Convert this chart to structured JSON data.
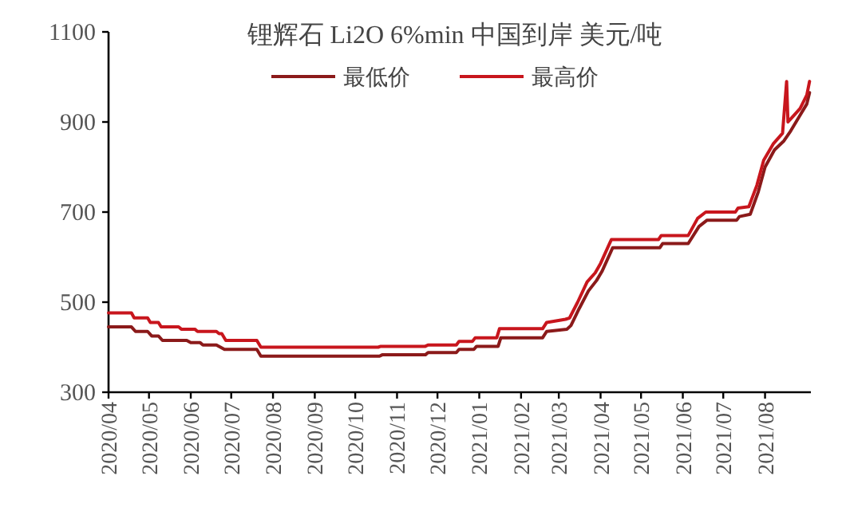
{
  "chart_data": {
    "type": "line",
    "title": "锂辉石 Li2O 6%min 中国到岸 美元/吨",
    "legend": "top",
    "xlim": [
      "2020-04-01",
      "2021-09-04"
    ],
    "ylim": [
      300,
      1100
    ],
    "yticks": [
      300,
      500,
      700,
      900,
      1100
    ],
    "xticks": [
      {
        "value": "2020-04",
        "label": "2020/04"
      },
      {
        "value": "2020-05",
        "label": "2020/05"
      },
      {
        "value": "2020-06",
        "label": "2020/06"
      },
      {
        "value": "2020-07",
        "label": "2020/07"
      },
      {
        "value": "2020-08",
        "label": "2020/08"
      },
      {
        "value": "2020-09",
        "label": "2020/09"
      },
      {
        "value": "2020-10",
        "label": "2020/10"
      },
      {
        "value": "2020-11",
        "label": "2020/11"
      },
      {
        "value": "2020-12",
        "label": "2020/12"
      },
      {
        "value": "2021-01",
        "label": "2021/01"
      },
      {
        "value": "2021-02",
        "label": "2021/02"
      },
      {
        "value": "2021-03",
        "label": "2021/03"
      },
      {
        "value": "2021-04",
        "label": "2021/04"
      },
      {
        "value": "2021-05",
        "label": "2021/05"
      },
      {
        "value": "2021-06",
        "label": "2021/06"
      },
      {
        "value": "2021-07",
        "label": "2021/07"
      },
      {
        "value": "2021-08",
        "label": "2021/08"
      }
    ],
    "series": [
      {
        "name": "最低价",
        "color": "#8b1a1a",
        "x": [
          "2020-04-01",
          "2020-04-18",
          "2020-04-21",
          "2020-04-30",
          "2020-05-03",
          "2020-05-08",
          "2020-05-11",
          "2020-05-29",
          "2020-06-01",
          "2020-06-08",
          "2020-06-10",
          "2020-06-20",
          "2020-06-23",
          "2020-06-26",
          "2020-07-20",
          "2020-07-23",
          "2020-10-19",
          "2020-10-21",
          "2020-11-22",
          "2020-11-24",
          "2020-12-15",
          "2020-12-17",
          "2020-12-28",
          "2020-12-30",
          "2021-01-15",
          "2021-01-17",
          "2021-02-17",
          "2021-02-20",
          "2021-03-07",
          "2021-03-10",
          "2021-03-16",
          "2021-03-23",
          "2021-03-29",
          "2021-04-02",
          "2021-04-10",
          "2021-05-15",
          "2021-05-17",
          "2021-06-05",
          "2021-06-13",
          "2021-06-19",
          "2021-07-11",
          "2021-07-13",
          "2021-07-21",
          "2021-07-27",
          "2021-08-01",
          "2021-08-08",
          "2021-08-15",
          "2021-08-20",
          "2021-08-27",
          "2021-09-01",
          "2021-09-03"
        ],
        "values": [
          445,
          445,
          435,
          435,
          425,
          425,
          415,
          415,
          410,
          410,
          405,
          405,
          400,
          395,
          395,
          380,
          380,
          383,
          383,
          388,
          388,
          395,
          395,
          402,
          402,
          421,
          421,
          435,
          440,
          448,
          485,
          525,
          548,
          568,
          621,
          621,
          630,
          630,
          668,
          682,
          682,
          690,
          695,
          745,
          800,
          838,
          858,
          880,
          915,
          940,
          965
        ]
      },
      {
        "name": "最高价",
        "color": "#c8161d",
        "x": [
          "2020-04-01",
          "2020-04-18",
          "2020-04-20",
          "2020-04-30",
          "2020-05-02",
          "2020-05-08",
          "2020-05-10",
          "2020-05-23",
          "2020-05-25",
          "2020-06-04",
          "2020-06-06",
          "2020-06-20",
          "2020-06-22",
          "2020-06-24",
          "2020-06-27",
          "2020-07-20",
          "2020-07-23",
          "2020-10-18",
          "2020-10-20",
          "2020-11-22",
          "2020-11-24",
          "2020-12-15",
          "2020-12-17",
          "2020-12-27",
          "2020-12-29",
          "2021-01-14",
          "2021-01-16",
          "2021-02-17",
          "2021-02-20",
          "2021-03-06",
          "2021-03-09",
          "2021-03-15",
          "2021-03-22",
          "2021-03-28",
          "2021-04-01",
          "2021-04-09",
          "2021-05-14",
          "2021-05-16",
          "2021-06-05",
          "2021-06-12",
          "2021-06-18",
          "2021-07-10",
          "2021-07-12",
          "2021-07-20",
          "2021-07-26",
          "2021-07-31",
          "2021-08-07",
          "2021-08-14",
          "2021-08-17",
          "2021-08-18",
          "2021-08-21",
          "2021-08-27",
          "2021-09-01",
          "2021-09-03"
        ],
        "values": [
          476,
          476,
          465,
          465,
          455,
          455,
          445,
          445,
          440,
          440,
          435,
          435,
          430,
          430,
          415,
          415,
          400,
          400,
          402,
          402,
          405,
          405,
          413,
          413,
          421,
          421,
          441,
          441,
          455,
          462,
          465,
          500,
          545,
          565,
          586,
          639,
          639,
          648,
          648,
          686,
          700,
          700,
          709,
          712,
          760,
          815,
          851,
          875,
          990,
          900,
          910,
          930,
          960,
          990
        ]
      }
    ]
  }
}
